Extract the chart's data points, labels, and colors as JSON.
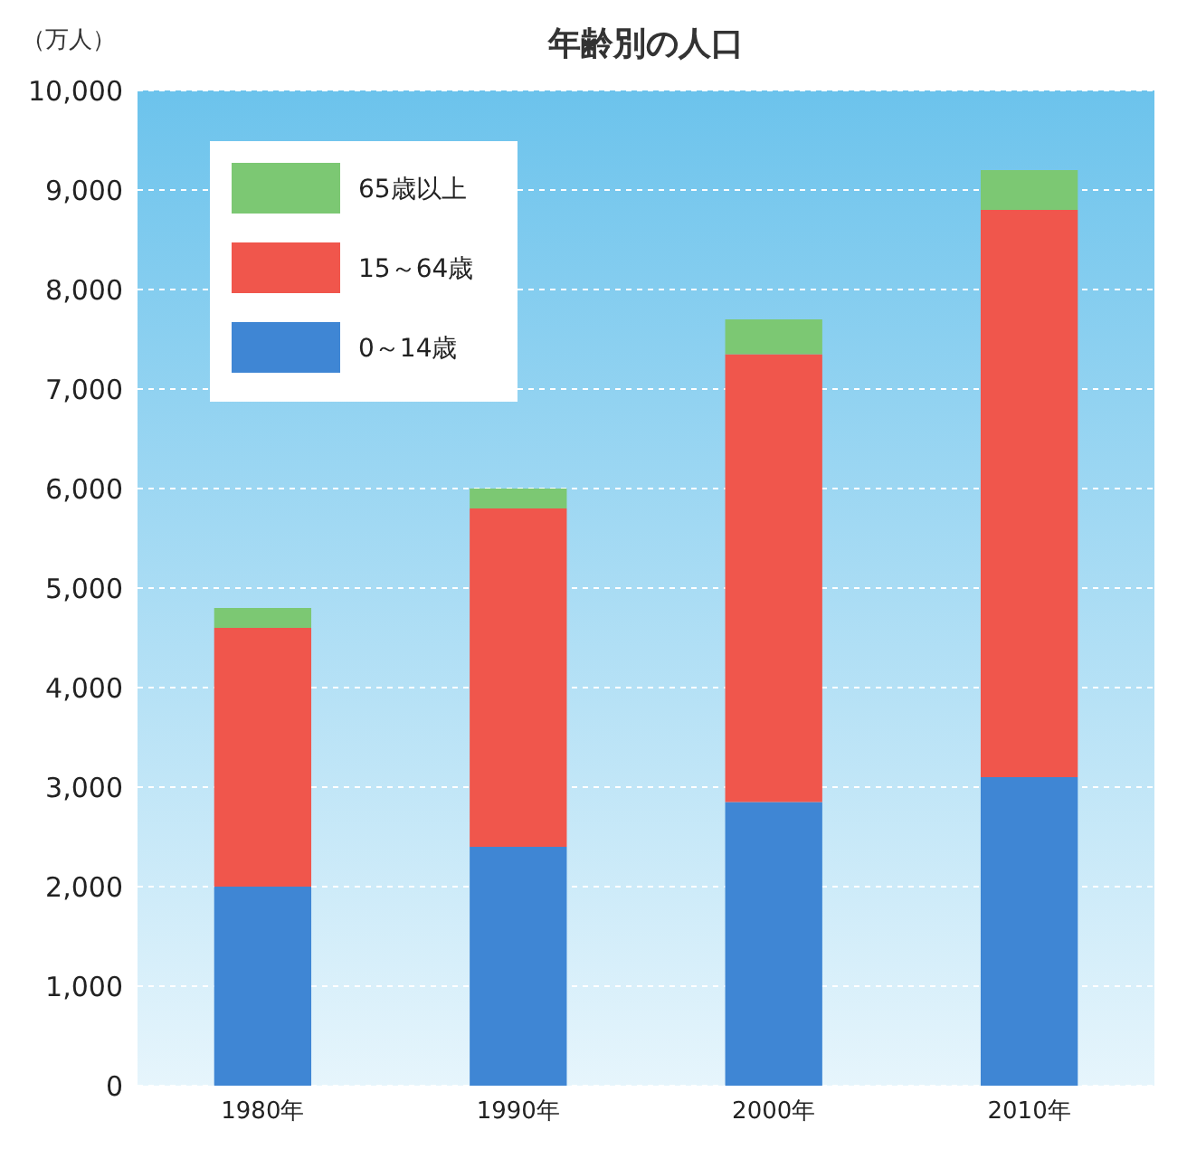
{
  "chart_data": {
    "type": "bar",
    "title": "年齢別の人口",
    "ylabel": "（万人）",
    "categories": [
      "1980年",
      "1990年",
      "2000年",
      "2010年"
    ],
    "series": [
      {
        "name": "0～14歳",
        "color": "#3f86d4",
        "values": [
          2000,
          2400,
          2850,
          3100
        ]
      },
      {
        "name": "15～64歳",
        "color": "#f0564c",
        "values": [
          2600,
          3400,
          4500,
          5700
        ]
      },
      {
        "name": "65歳以上",
        "color": "#7cc873",
        "values": [
          200,
          200,
          350,
          400
        ]
      }
    ],
    "stacked": true,
    "ylim": [
      0,
      10000
    ],
    "yticks": [
      0,
      {
        "value": 1000,
        "label": "1,000"
      },
      {
        "value": 2000,
        "label": "2,000"
      },
      {
        "value": 3000,
        "label": "3,000"
      },
      {
        "value": 4000,
        "label": "4,000"
      },
      {
        "value": 5000,
        "label": "5,000"
      },
      {
        "value": 6000,
        "label": "6,000"
      },
      {
        "value": 7000,
        "label": "7,000"
      },
      {
        "value": 8000,
        "label": "8,000"
      },
      {
        "value": 9000,
        "label": "9,000"
      },
      {
        "value": 10000,
        "label": "10,000"
      }
    ],
    "grid": "y",
    "legend": "top left"
  }
}
